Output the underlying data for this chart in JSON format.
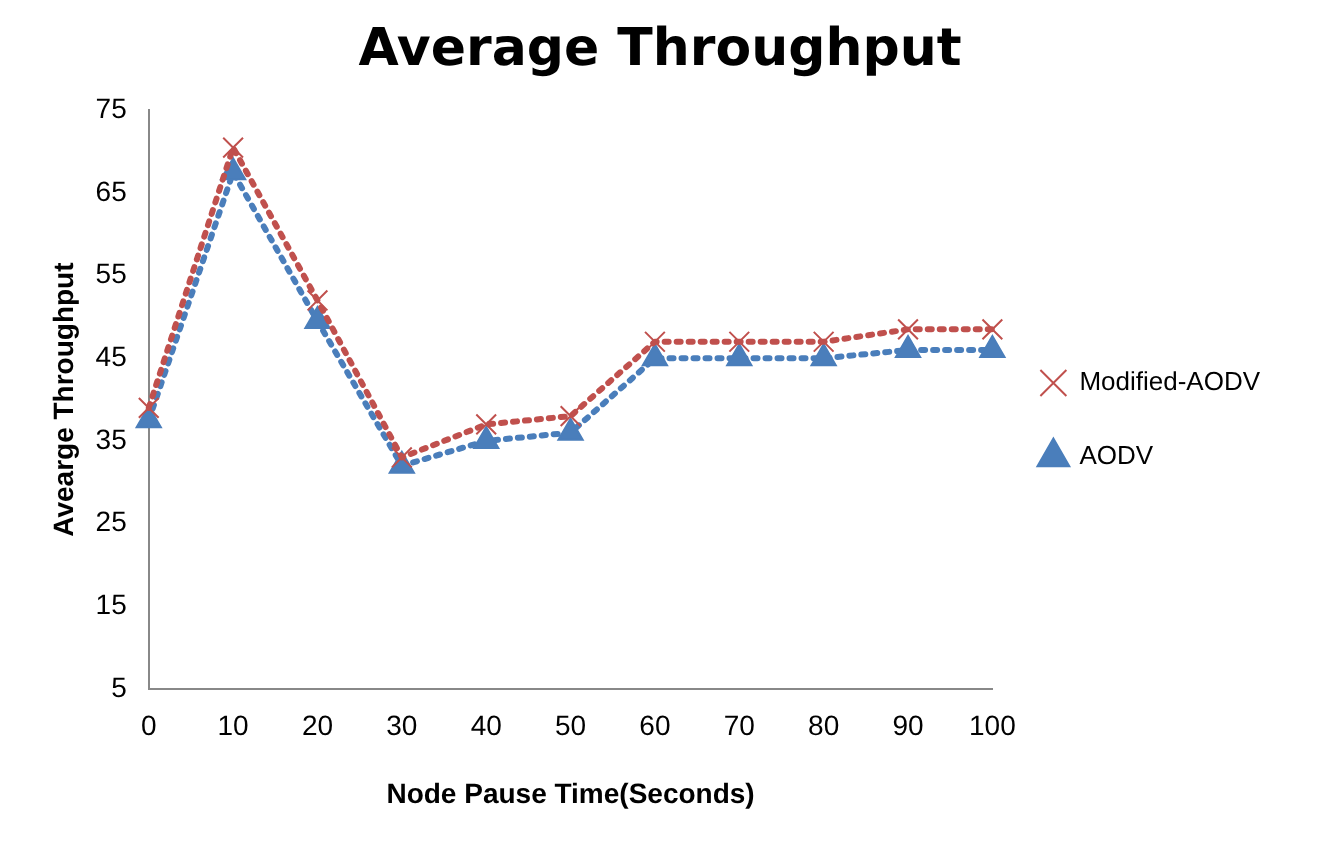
{
  "chart_data": {
    "type": "line",
    "title": "Average Throughput",
    "xlabel": "Node Pause Time(Seconds)",
    "ylabel": "Avearge Throughput",
    "categories": [
      "0",
      "10",
      "20",
      "30",
      "40",
      "50",
      "60",
      "70",
      "80",
      "90",
      "100"
    ],
    "series": [
      {
        "name": "AODV",
        "color": "#4a7ebb",
        "marker": "triangle",
        "values": [
          37.5,
          67.5,
          49.5,
          32,
          35,
          36,
          45,
          45,
          45,
          46,
          46
        ]
      },
      {
        "name": "Modified-AODV",
        "color": "#c0504d",
        "marker": "cross",
        "values": [
          39,
          70.5,
          52,
          33,
          37,
          38,
          47,
          47,
          47,
          48.5,
          48.5
        ]
      }
    ],
    "ylim": [
      5,
      75
    ],
    "yticks": [
      5,
      15,
      25,
      35,
      45,
      55,
      65,
      75
    ],
    "grid": false,
    "legend": "right",
    "line_style": "dotted"
  }
}
